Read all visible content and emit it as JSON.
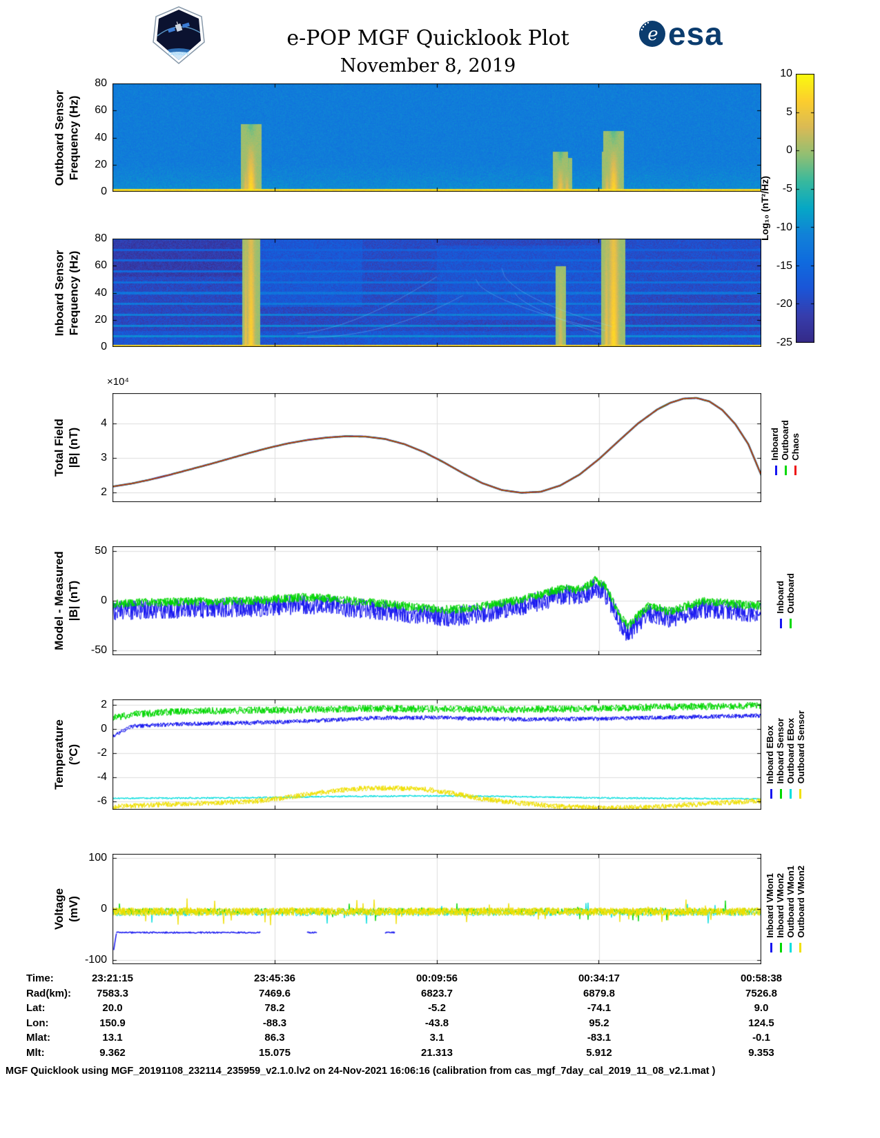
{
  "header": {
    "title": "e-POP MGF Quicklook Plot",
    "date": "November 8, 2019",
    "mission_patch_text": "CASSIOPE",
    "esa_wordmark": "esa"
  },
  "colorbar": {
    "label": "Log₁₀ (nT²/Hz)",
    "min": -25,
    "max": 10,
    "ticks": [
      10,
      5,
      0,
      -5,
      -10,
      -15,
      -20,
      -25
    ],
    "applies_to": [
      "outboard-spectrogram",
      "inboard-spectrogram"
    ],
    "colormap_stops": [
      "#352a87",
      "#363dad",
      "#1b55d7",
      "#0f6bde",
      "#1181d8",
      "#06a7c6",
      "#38b99e",
      "#92bf73",
      "#d9ba56",
      "#fcce2e",
      "#f9fb0e"
    ]
  },
  "colors": {
    "blue": "#1616f0",
    "green": "#00d800",
    "red": "#ee1111",
    "cyan": "#00dede",
    "yellow": "#f0e000",
    "grid": "#dedede",
    "axis": "#000000"
  },
  "chart_data": [
    {
      "id": "outboard-spectrogram",
      "type": "heatmap",
      "ylabel": [
        "Outboard Sensor",
        "Frequency (Hz)"
      ],
      "ylim": [
        0,
        80
      ],
      "yticks": [
        0,
        20,
        40,
        60,
        80
      ],
      "x_range": [
        "23:21:15",
        "00:58:38"
      ],
      "value_units": "Log10 (nT^2/Hz)",
      "background_level": -11.8,
      "noise": 3.2,
      "low_freq_brighten": 0.085,
      "bottom_band": {
        "max_hz": 2.2,
        "level": 7.5
      },
      "bursts": [
        {
          "x": 0.213,
          "sigma": 0.004,
          "peak": 8.5,
          "falloff": 0.22,
          "max_hz": 50
        },
        {
          "x": 0.205,
          "sigma": 0.002,
          "peak": 5.0,
          "falloff": 0.25,
          "max_hz": 30
        },
        {
          "x": 0.69,
          "sigma": 0.003,
          "peak": 5.5,
          "falloff": 0.28,
          "max_hz": 30
        },
        {
          "x": 0.7,
          "sigma": 0.002,
          "peak": 4.5,
          "falloff": 0.3,
          "max_hz": 25
        },
        {
          "x": 0.772,
          "sigma": 0.004,
          "peak": 8.0,
          "falloff": 0.24,
          "max_hz": 45
        },
        {
          "x": 0.762,
          "sigma": 0.002,
          "peak": 5.0,
          "falloff": 0.3,
          "max_hz": 30
        }
      ],
      "seed": 42
    },
    {
      "id": "inboard-spectrogram",
      "type": "heatmap",
      "ylabel": [
        "Inboard Sensor",
        "Frequency (Hz)"
      ],
      "ylim": [
        0,
        80
      ],
      "yticks": [
        0,
        20,
        40,
        60,
        80
      ],
      "x_range": [
        "23:21:15",
        "00:58:38"
      ],
      "value_units": "Log10 (nT^2/Hz)",
      "background_level": -20,
      "noise": 4.5,
      "patches": [
        {
          "x0": 0.0,
          "x1": 0.215,
          "f0": 52,
          "f1": 80,
          "delta": -1.8
        },
        {
          "x0": 0.215,
          "x1": 0.385,
          "f0": 30,
          "f1": 80,
          "delta": 2.4
        },
        {
          "x0": 0.385,
          "x1": 0.5,
          "f0": 0,
          "f1": 80,
          "delta": 0.5
        },
        {
          "x0": 0.5,
          "x1": 0.77,
          "f0": 20,
          "f1": 75,
          "delta": 2.0
        },
        {
          "x0": 0.77,
          "x1": 1.0,
          "f0": 40,
          "f1": 80,
          "delta": 1.0
        },
        {
          "x0": 0.0,
          "x1": 1.0,
          "f0": 0,
          "f1": 12,
          "delta": 2.0
        }
      ],
      "harmonics": {
        "spacing_hz": 8,
        "base_level": -9.5,
        "per_hz_falloff": 0.09
      },
      "bottom_band": {
        "max_hz": 2.0,
        "level": 7
      },
      "bursts": [
        {
          "x": 0.213,
          "sigma": 0.0035,
          "peak": 7.0,
          "falloff": 0.045,
          "max_hz": 80
        },
        {
          "x": 0.205,
          "sigma": 0.0015,
          "peak": 5.0,
          "falloff": 0.05,
          "max_hz": 80
        },
        {
          "x": 0.772,
          "sigma": 0.0045,
          "peak": 7.5,
          "falloff": 0.04,
          "max_hz": 80
        },
        {
          "x": 0.761,
          "sigma": 0.002,
          "peak": 5.0,
          "falloff": 0.05,
          "max_hz": 80
        },
        {
          "x": 0.69,
          "sigma": 0.002,
          "peak": 3.0,
          "falloff": 0.05,
          "max_hz": 60
        }
      ],
      "sweeps": [
        {
          "x0": 0.285,
          "x1": 0.5,
          "f0": 10,
          "f1": 52,
          "bend": 1.6
        },
        {
          "x0": 0.3,
          "x1": 0.54,
          "f0": 7,
          "f1": 38,
          "bend": 2.0
        },
        {
          "x0": 0.56,
          "x1": 0.76,
          "f0": 50,
          "f1": 12,
          "bend": 0.6
        },
        {
          "x0": 0.6,
          "x1": 0.77,
          "f0": 58,
          "f1": 15,
          "bend": 0.55
        },
        {
          "x0": 0.62,
          "x1": 0.75,
          "f0": 40,
          "f1": 10,
          "bend": 0.7
        }
      ],
      "seed": 7
    },
    {
      "id": "total-field",
      "type": "line",
      "ylabel": [
        "Total Field",
        "|B| (nT)"
      ],
      "scale_label": "×10⁴",
      "units_scale": "1e4 nT",
      "ylim": [
        1.72,
        4.88
      ],
      "yticks": [
        2,
        3,
        4
      ],
      "x_range": [
        "23:21:15",
        "00:58:38"
      ],
      "legend": [
        {
          "label": "Inboard",
          "color": "blue"
        },
        {
          "label": "Outboard",
          "color": "green"
        },
        {
          "label": "Chaos",
          "color": "red"
        }
      ],
      "profile": [
        [
          0,
          2.17
        ],
        [
          0.03,
          2.26
        ],
        [
          0.06,
          2.38
        ],
        [
          0.09,
          2.52
        ],
        [
          0.12,
          2.67
        ],
        [
          0.15,
          2.82
        ],
        [
          0.18,
          2.98
        ],
        [
          0.21,
          3.14
        ],
        [
          0.24,
          3.29
        ],
        [
          0.27,
          3.42
        ],
        [
          0.3,
          3.52
        ],
        [
          0.33,
          3.59
        ],
        [
          0.36,
          3.63
        ],
        [
          0.39,
          3.62
        ],
        [
          0.42,
          3.55
        ],
        [
          0.45,
          3.4
        ],
        [
          0.48,
          3.17
        ],
        [
          0.51,
          2.88
        ],
        [
          0.54,
          2.56
        ],
        [
          0.57,
          2.27
        ],
        [
          0.6,
          2.07
        ],
        [
          0.63,
          1.99
        ],
        [
          0.66,
          2.02
        ],
        [
          0.69,
          2.2
        ],
        [
          0.72,
          2.52
        ],
        [
          0.75,
          2.97
        ],
        [
          0.78,
          3.49
        ],
        [
          0.81,
          4.0
        ],
        [
          0.84,
          4.41
        ],
        [
          0.86,
          4.6
        ],
        [
          0.88,
          4.72
        ],
        [
          0.9,
          4.74
        ],
        [
          0.92,
          4.64
        ],
        [
          0.94,
          4.39
        ],
        [
          0.96,
          3.98
        ],
        [
          0.98,
          3.4
        ],
        [
          1.0,
          2.5
        ]
      ]
    },
    {
      "id": "model-minus-measured",
      "type": "line",
      "ylabel": [
        "Model - Measured",
        "|B| (nT)"
      ],
      "ylim": [
        -55,
        55
      ],
      "yticks": [
        -50,
        0,
        50
      ],
      "x_range": [
        "23:21:15",
        "00:58:38"
      ],
      "legend": [
        {
          "label": "Inboard",
          "color": "blue"
        },
        {
          "label": "Outboard",
          "color": "green"
        }
      ],
      "profile": [
        [
          0,
          -5
        ],
        [
          0.04,
          -4
        ],
        [
          0.08,
          -3.5
        ],
        [
          0.12,
          -3
        ],
        [
          0.16,
          -2.5
        ],
        [
          0.2,
          -2
        ],
        [
          0.24,
          -1
        ],
        [
          0.27,
          0.5
        ],
        [
          0.3,
          1.5
        ],
        [
          0.33,
          0.5
        ],
        [
          0.36,
          -1.5
        ],
        [
          0.4,
          -4
        ],
        [
          0.44,
          -6.5
        ],
        [
          0.48,
          -9.5
        ],
        [
          0.52,
          -11
        ],
        [
          0.55,
          -9.5
        ],
        [
          0.58,
          -6.5
        ],
        [
          0.62,
          -2
        ],
        [
          0.65,
          3
        ],
        [
          0.68,
          8
        ],
        [
          0.7,
          11
        ],
        [
          0.715,
          9
        ],
        [
          0.73,
          12
        ],
        [
          0.745,
          19
        ],
        [
          0.758,
          14
        ],
        [
          0.77,
          0
        ],
        [
          0.785,
          -20
        ],
        [
          0.795,
          -28
        ],
        [
          0.81,
          -17
        ],
        [
          0.825,
          -8
        ],
        [
          0.84,
          -9
        ],
        [
          0.855,
          -13
        ],
        [
          0.87,
          -11
        ],
        [
          0.89,
          -6
        ],
        [
          0.91,
          -3
        ],
        [
          0.94,
          -4
        ],
        [
          0.97,
          -6
        ],
        [
          1,
          -7
        ]
      ],
      "series": [
        {
          "name": "Inboard",
          "color": "blue",
          "offset": -5,
          "noise": 10,
          "passes": 2
        },
        {
          "name": "Outboard",
          "color": "green",
          "offset": 2,
          "noise": 4.5,
          "passes": 2
        }
      ]
    },
    {
      "id": "temperature",
      "type": "line",
      "ylabel": [
        "Temperature",
        "(°C)"
      ],
      "ylim": [
        -6.7,
        2.45
      ],
      "yticks": [
        2,
        0,
        -2,
        -4,
        -6
      ],
      "x_range": [
        "23:21:15",
        "00:58:38"
      ],
      "legend": [
        {
          "label": "Inboard EBox",
          "color": "blue"
        },
        {
          "label": "Inboard Sensor",
          "color": "green"
        },
        {
          "label": "Outboard EBox",
          "color": "cyan"
        },
        {
          "label": "Outboard Sensor",
          "color": "yellow"
        }
      ],
      "series": [
        {
          "name": "Inboard EBox",
          "color": "blue",
          "noise": 0.18,
          "passes": 2,
          "profile": [
            [
              0,
              -0.6
            ],
            [
              0.03,
              0.2
            ],
            [
              0.1,
              0.4
            ],
            [
              0.2,
              0.5
            ],
            [
              0.3,
              0.65
            ],
            [
              0.4,
              0.9
            ],
            [
              0.5,
              0.95
            ],
            [
              0.55,
              0.85
            ],
            [
              0.65,
              0.8
            ],
            [
              0.75,
              0.85
            ],
            [
              0.85,
              0.95
            ],
            [
              0.95,
              1.05
            ],
            [
              1,
              1.1
            ]
          ]
        },
        {
          "name": "Inboard Sensor",
          "color": "green",
          "noise": 0.3,
          "passes": 2,
          "profile": [
            [
              0,
              0.9
            ],
            [
              0.03,
              1.2
            ],
            [
              0.1,
              1.45
            ],
            [
              0.2,
              1.55
            ],
            [
              0.3,
              1.6
            ],
            [
              0.4,
              1.7
            ],
            [
              0.5,
              1.65
            ],
            [
              0.6,
              1.6
            ],
            [
              0.7,
              1.65
            ],
            [
              0.8,
              1.75
            ],
            [
              0.9,
              1.85
            ],
            [
              1,
              1.95
            ]
          ]
        },
        {
          "name": "Outboard EBox",
          "color": "cyan",
          "noise": 0.07,
          "passes": 2,
          "profile": [
            [
              0,
              -5.75
            ],
            [
              0.2,
              -5.72
            ],
            [
              0.35,
              -5.6
            ],
            [
              0.5,
              -5.55
            ],
            [
              0.6,
              -5.6
            ],
            [
              0.75,
              -5.72
            ],
            [
              0.9,
              -5.78
            ],
            [
              1,
              -5.8
            ]
          ]
        },
        {
          "name": "Outboard Sensor",
          "color": "yellow",
          "noise": 0.22,
          "passes": 2,
          "profile": [
            [
              0,
              -6.45
            ],
            [
              0.08,
              -6.25
            ],
            [
              0.15,
              -6.15
            ],
            [
              0.22,
              -6.0
            ],
            [
              0.28,
              -5.6
            ],
            [
              0.33,
              -5.2
            ],
            [
              0.38,
              -4.95
            ],
            [
              0.43,
              -4.9
            ],
            [
              0.48,
              -5.0
            ],
            [
              0.52,
              -5.3
            ],
            [
              0.57,
              -5.8
            ],
            [
              0.62,
              -6.1
            ],
            [
              0.68,
              -6.4
            ],
            [
              0.75,
              -6.55
            ],
            [
              0.82,
              -6.5
            ],
            [
              0.9,
              -6.25
            ],
            [
              1,
              -5.95
            ]
          ]
        }
      ]
    },
    {
      "id": "voltage",
      "type": "line",
      "ylabel": [
        "Voltage",
        "(mV)"
      ],
      "ylim": [
        -108,
        108
      ],
      "yticks": [
        -100,
        0,
        100
      ],
      "x_range": [
        "23:21:15",
        "00:58:38"
      ],
      "legend": [
        {
          "label": "Inboard VMon1",
          "color": "blue"
        },
        {
          "label": "Inboard VMon2",
          "color": "green"
        },
        {
          "label": "Outboard VMon1",
          "color": "cyan"
        },
        {
          "label": "Outboard VMon2",
          "color": "yellow"
        }
      ],
      "series": [
        {
          "name": "Outboard VMon1",
          "color": "cyan",
          "noise": 6,
          "passes": 1,
          "spike": 0.02,
          "profile": [
            [
              0,
              -8
            ],
            [
              1,
              -8
            ]
          ]
        },
        {
          "name": "Inboard VMon2",
          "color": "green",
          "noise": 6,
          "passes": 1,
          "spike": 0.02,
          "profile": [
            [
              0,
              -4
            ],
            [
              1,
              -4
            ]
          ]
        },
        {
          "name": "Outboard VMon2",
          "color": "yellow",
          "noise": 8,
          "passes": 3,
          "spike": 0.015,
          "profile": [
            [
              0,
              -5
            ],
            [
              1,
              -5
            ]
          ]
        }
      ],
      "blue_segments": [
        {
          "x0": 0.002,
          "x1": 0.006,
          "y0": -80,
          "y1": -48
        },
        {
          "x0": 0.006,
          "x1": 0.228,
          "y0": -46,
          "y1": -46
        },
        {
          "x0": 0.3,
          "x1": 0.315,
          "y0": -46,
          "y1": -46
        },
        {
          "x0": 0.42,
          "x1": 0.435,
          "y0": -46,
          "y1": -46
        }
      ]
    }
  ],
  "table": {
    "rows": [
      {
        "label": "Time:",
        "values": [
          "23:21:15",
          "23:45:36",
          "00:09:56",
          "00:34:17",
          "00:58:38"
        ]
      },
      {
        "label": "Rad(km):",
        "values": [
          "7583.3",
          "7469.6",
          "6823.7",
          "6879.8",
          "7526.8"
        ]
      },
      {
        "label": "Lat:",
        "values": [
          "20.0",
          "78.2",
          "-5.2",
          "-74.1",
          "9.0"
        ]
      },
      {
        "label": "Lon:",
        "values": [
          "150.9",
          "-88.3",
          "-43.8",
          "95.2",
          "124.5"
        ]
      },
      {
        "label": "Mlat:",
        "values": [
          "13.1",
          "86.3",
          "3.1",
          "-83.1",
          "-0.1"
        ]
      },
      {
        "label": "Mlt:",
        "values": [
          "9.362",
          "15.075",
          "21.313",
          "5.912",
          "9.353"
        ]
      }
    ]
  },
  "footer": {
    "text": "MGF Quicklook using MGF_20191108_232114_235959_v2.1.0.lv2 on 24-Nov-2021 16:06:16 (calibration from cas_mgf_7day_cal_2019_11_08_v2.1.mat )"
  }
}
